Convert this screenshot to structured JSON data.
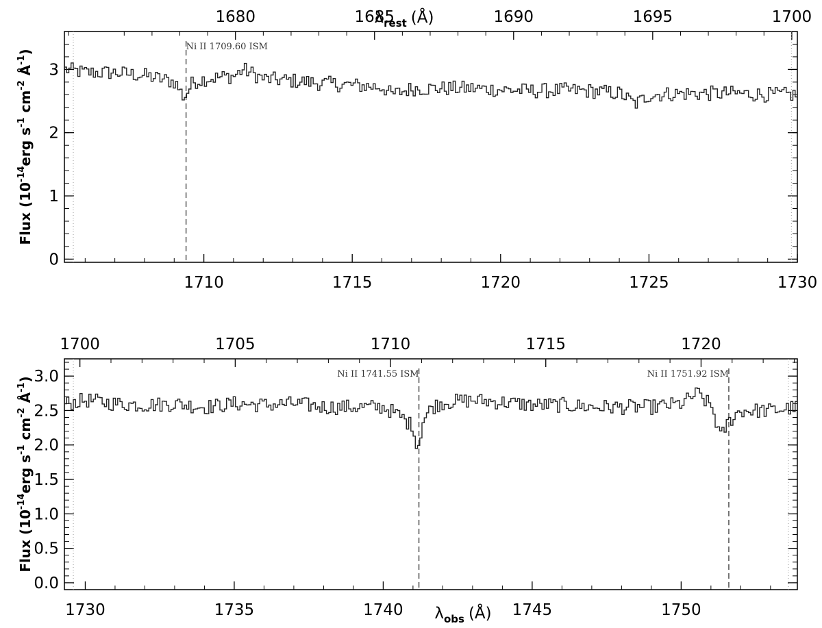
{
  "chart_data": [
    {
      "type": "line",
      "panel": "top",
      "x_range": [
        1705.3,
        1730.0
      ],
      "top_range": [
        1673.85,
        1700.2
      ],
      "top_ticks": [
        1680,
        1685,
        1690,
        1695,
        1700
      ],
      "top_tick_labels": [
        "1680",
        "1685",
        "1690",
        "1695",
        "1700"
      ],
      "x_ticks": [
        1710,
        1715,
        1720,
        1725,
        1730
      ],
      "x_tick_labels": [
        "1710",
        "1715",
        "1720",
        "1725",
        "1730"
      ],
      "ylim": [
        -0.05,
        3.6
      ],
      "y_ticks": [
        0,
        1,
        2,
        3
      ],
      "y_tick_labels": [
        "0",
        "1",
        "2",
        "3"
      ],
      "top_label": {
        "base": "λ",
        "sub": "rest",
        "unit": "(Å)"
      },
      "ylabel": {
        "a": "Flux (10",
        "b": "-14",
        "c": "erg s",
        "d": "-1",
        "e": " cm",
        "f": "-2",
        "g": " Å",
        "h": "-1",
        "i": ")"
      },
      "ism_lines": [
        {
          "x": 1709.4,
          "label": "Ni II 1709.60 ISM"
        }
      ],
      "edge_lines": [
        1705.6,
        1729.8
      ],
      "series": [
        {
          "x": [
            1705.3,
            1706.0,
            1707.0,
            1708.0,
            1709.0,
            1709.3,
            1709.6,
            1710.0,
            1711.0,
            1711.3,
            1712.0,
            1713.0,
            1714.0,
            1715.0,
            1716.0,
            1716.3,
            1717.0,
            1718.0,
            1719.0,
            1720.0,
            1721.0,
            1722.0,
            1723.0,
            1724.0,
            1724.5,
            1725.0,
            1726.0,
            1727.0,
            1728.0,
            1729.0,
            1730.0
          ],
          "y": [
            3.0,
            2.95,
            2.95,
            2.9,
            2.8,
            2.55,
            2.8,
            2.85,
            2.9,
            3.0,
            2.85,
            2.82,
            2.78,
            2.75,
            2.72,
            2.6,
            2.7,
            2.7,
            2.7,
            2.68,
            2.66,
            2.67,
            2.66,
            2.62,
            2.45,
            2.6,
            2.62,
            2.62,
            2.62,
            2.6,
            2.6
          ]
        }
      ]
    },
    {
      "type": "line",
      "panel": "bottom",
      "x_range": [
        1729.3,
        1753.9
      ],
      "top_range": [
        1699.5,
        1723.1
      ],
      "top_ticks": [
        1700,
        1705,
        1710,
        1715,
        1720
      ],
      "top_tick_labels": [
        "1700",
        "1705",
        "1710",
        "1715",
        "1720"
      ],
      "x_ticks": [
        1730,
        1735,
        1740,
        1745,
        1750
      ],
      "x_tick_labels": [
        "1730",
        "1735",
        "1740",
        "1745",
        "1750"
      ],
      "ylim": [
        -0.1,
        3.25
      ],
      "y_ticks": [
        0,
        0.5,
        1.0,
        1.5,
        2.0,
        2.5,
        3.0
      ],
      "y_tick_labels": [
        "0.0",
        "0.5",
        "1.0",
        "1.5",
        "2.0",
        "2.5",
        "3.0"
      ],
      "xlabel": {
        "base": "λ",
        "sub": "obs",
        "unit": "(Å)"
      },
      "ylabel": {
        "a": "Flux (10",
        "b": "-14",
        "c": "erg s",
        "d": "-1",
        "e": " cm",
        "f": "-2",
        "g": " Å",
        "h": "-1",
        "i": ")"
      },
      "ism_lines": [
        {
          "x": 1741.2,
          "label": "Ni II 1741.55 ISM"
        },
        {
          "x": 1751.6,
          "label": "Ni II 1751.92 ISM"
        }
      ],
      "edge_lines": [
        1729.6,
        1753.6
      ],
      "series": [
        {
          "x": [
            1729.3,
            1730.0,
            1731.0,
            1732.0,
            1733.0,
            1734.0,
            1735.0,
            1736.0,
            1737.0,
            1738.0,
            1739.0,
            1740.0,
            1740.6,
            1741.0,
            1741.1,
            1741.3,
            1741.6,
            1742.0,
            1743.0,
            1744.0,
            1745.0,
            1746.0,
            1747.0,
            1748.0,
            1749.0,
            1750.0,
            1750.5,
            1751.0,
            1751.3,
            1751.5,
            1751.8,
            1752.0,
            1753.0,
            1753.9
          ],
          "y": [
            2.6,
            2.65,
            2.6,
            2.58,
            2.6,
            2.55,
            2.6,
            2.58,
            2.6,
            2.55,
            2.55,
            2.55,
            2.4,
            2.25,
            1.9,
            2.35,
            2.55,
            2.62,
            2.65,
            2.62,
            2.58,
            2.58,
            2.55,
            2.55,
            2.55,
            2.6,
            2.75,
            2.55,
            2.1,
            2.3,
            2.45,
            2.5,
            2.5,
            2.55
          ]
        }
      ]
    }
  ]
}
